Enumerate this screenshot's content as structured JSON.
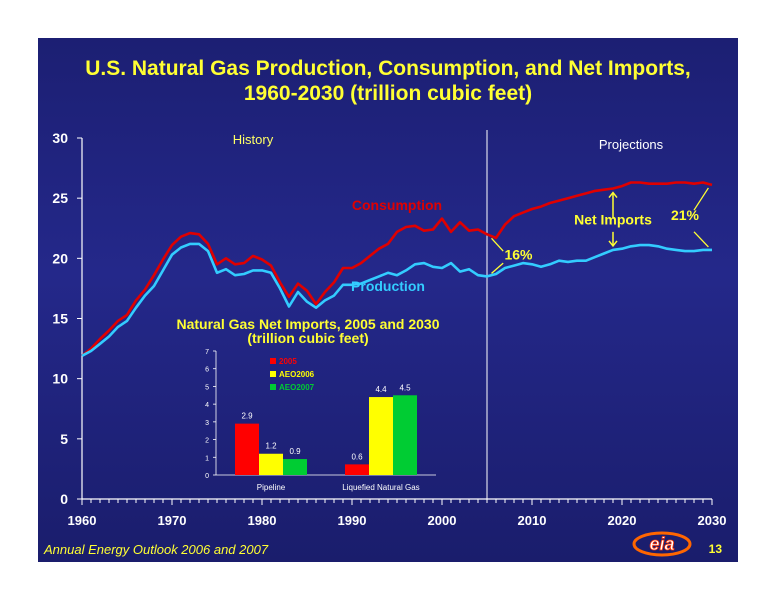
{
  "title_line1": "U.S. Natural Gas Production, Consumption, and Net Imports,",
  "title_line2": "1960-2030 (trillion cubic feet)",
  "footer": "Annual Energy Outlook 2006 and 2007",
  "page_number": "13",
  "logo_text": "eia",
  "colors": {
    "background": "#1f237c",
    "title": "#ffff33",
    "consumption": "#e00000",
    "production": "#33ccff",
    "axis": "#ffffff",
    "inset_2005": "#ff0000",
    "inset_aeo2006": "#ffff00",
    "inset_aeo2007": "#00cc33"
  },
  "chart_data": [
    {
      "type": "line",
      "xlim": [
        1960,
        2030
      ],
      "ylim": [
        0,
        30
      ],
      "xticks": [
        1960,
        1970,
        1980,
        1990,
        2000,
        2010,
        2020,
        2030
      ],
      "yticks": [
        0,
        5,
        10,
        15,
        20,
        25,
        30
      ],
      "x": [
        1960,
        1961,
        1962,
        1963,
        1964,
        1965,
        1966,
        1967,
        1968,
        1969,
        1970,
        1971,
        1972,
        1973,
        1974,
        1975,
        1976,
        1977,
        1978,
        1979,
        1980,
        1981,
        1982,
        1983,
        1984,
        1985,
        1986,
        1987,
        1988,
        1989,
        1990,
        1991,
        1992,
        1993,
        1994,
        1995,
        1996,
        1997,
        1998,
        1999,
        2000,
        2001,
        2002,
        2003,
        2004,
        2005,
        2006,
        2007,
        2008,
        2009,
        2010,
        2011,
        2012,
        2013,
        2014,
        2015,
        2016,
        2017,
        2018,
        2019,
        2020,
        2021,
        2022,
        2023,
        2024,
        2025,
        2026,
        2027,
        2028,
        2029,
        2030
      ],
      "series": [
        {
          "name": "Consumption",
          "values": [
            11.9,
            12.5,
            13.3,
            14.0,
            14.8,
            15.3,
            16.5,
            17.4,
            18.6,
            19.9,
            21.1,
            21.8,
            22.1,
            22.0,
            21.2,
            19.5,
            20.0,
            19.5,
            19.6,
            20.2,
            19.9,
            19.4,
            18.0,
            16.8,
            17.9,
            17.3,
            16.2,
            17.2,
            18.0,
            19.2,
            19.2,
            19.6,
            20.2,
            20.8,
            21.2,
            22.2,
            22.6,
            22.7,
            22.3,
            22.4,
            23.3,
            22.2,
            23.0,
            22.3,
            22.4,
            22.0,
            21.7,
            22.8,
            23.5,
            23.8,
            24.1,
            24.3,
            24.6,
            24.8,
            25.0,
            25.2,
            25.4,
            25.6,
            25.7,
            25.8,
            26.0,
            26.3,
            26.3,
            26.2,
            26.2,
            26.2,
            26.3,
            26.3,
            26.2,
            26.3,
            26.1
          ]
        },
        {
          "name": "Production",
          "values": [
            11.9,
            12.3,
            12.9,
            13.5,
            14.3,
            14.8,
            15.9,
            16.9,
            17.7,
            19.0,
            20.3,
            20.9,
            21.2,
            21.2,
            20.6,
            18.8,
            19.1,
            18.6,
            18.7,
            19.0,
            19.0,
            18.8,
            17.5,
            16.0,
            17.2,
            16.4,
            15.9,
            16.5,
            16.9,
            17.8,
            17.8,
            17.9,
            18.2,
            18.5,
            18.8,
            18.6,
            19.0,
            19.5,
            19.6,
            19.3,
            19.2,
            19.6,
            18.9,
            19.1,
            18.6,
            18.5,
            18.7,
            19.2,
            19.4,
            19.6,
            19.5,
            19.3,
            19.5,
            19.8,
            19.7,
            19.8,
            19.8,
            20.1,
            20.4,
            20.7,
            20.8,
            21.0,
            21.1,
            21.1,
            21.0,
            20.8,
            20.7,
            20.6,
            20.6,
            20.7,
            20.7
          ]
        }
      ],
      "annotations": {
        "history": "History",
        "projections": "Projections",
        "consumption_label": "Consumption",
        "production_label": "Production",
        "net_imports_label": "Net Imports",
        "pct_2005": "16%",
        "pct_2030": "21%"
      }
    },
    {
      "type": "bar",
      "title": "Natural Gas Net Imports, 2005 and 2030",
      "subtitle": "(trillion cubic feet)",
      "categories": [
        "Pipeline",
        "Liquefied Natural Gas"
      ],
      "ylim": [
        0,
        7
      ],
      "yticks": [
        0,
        1,
        2,
        3,
        4,
        5,
        6,
        7
      ],
      "legend_position": "top-left",
      "series": [
        {
          "name": "2005",
          "values": [
            2.9,
            0.6
          ]
        },
        {
          "name": "AEO2006",
          "values": [
            1.2,
            4.4
          ]
        },
        {
          "name": "AEO2007",
          "values": [
            0.9,
            4.5
          ]
        }
      ]
    }
  ]
}
